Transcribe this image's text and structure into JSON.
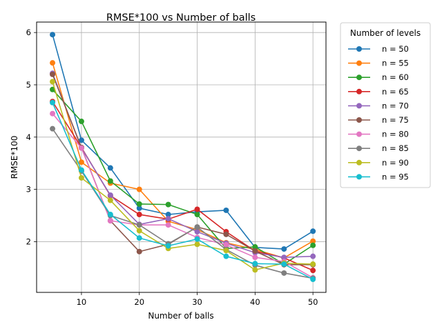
{
  "chart_data": {
    "type": "line",
    "title": "RMSE*100 vs Number of balls",
    "xlabel": "Number of balls",
    "ylabel": "RMSE*100",
    "x": [
      5,
      10,
      15,
      20,
      25,
      30,
      35,
      40,
      45,
      50
    ],
    "xlim": [
      2.25,
      52.25
    ],
    "ylim": [
      1.03,
      6.2
    ],
    "xticks": [
      10,
      20,
      30,
      40,
      50
    ],
    "yticks": [
      2,
      3,
      4,
      5,
      6
    ],
    "grid": true,
    "legend": {
      "title": "Number of levels",
      "placement": "outside-right"
    },
    "series": [
      {
        "name": "n = 50",
        "color": "#1f77b4",
        "values": [
          5.96,
          3.94,
          3.41,
          2.64,
          2.52,
          2.57,
          2.6,
          1.89,
          1.86,
          2.2
        ]
      },
      {
        "name": "n = 55",
        "color": "#ff7f0e",
        "values": [
          5.42,
          3.52,
          3.12,
          3.0,
          2.39,
          2.23,
          1.98,
          1.85,
          1.69,
          2.01
        ]
      },
      {
        "name": "n = 60",
        "color": "#2ca02c",
        "values": [
          4.91,
          4.3,
          3.16,
          2.72,
          2.71,
          2.52,
          1.87,
          1.9,
          1.57,
          1.93
        ]
      },
      {
        "name": "n = 65",
        "color": "#d62728",
        "values": [
          4.68,
          3.8,
          2.88,
          2.52,
          2.43,
          2.62,
          2.19,
          1.82,
          1.69,
          1.45
        ]
      },
      {
        "name": "n = 70",
        "color": "#9467bd",
        "values": [
          5.22,
          3.79,
          2.89,
          2.33,
          2.44,
          2.19,
          1.97,
          1.79,
          1.7,
          1.72
        ]
      },
      {
        "name": "n = 75",
        "color": "#8c564b",
        "values": [
          5.2,
          3.8,
          2.4,
          1.81,
          1.95,
          2.28,
          2.14,
          1.82,
          1.56,
          1.56
        ]
      },
      {
        "name": "n = 80",
        "color": "#e377c2",
        "values": [
          4.45,
          3.79,
          2.4,
          2.32,
          2.32,
          2.08,
          1.94,
          1.7,
          1.62,
          1.31
        ]
      },
      {
        "name": "n = 85",
        "color": "#7f7f7f",
        "values": [
          4.16,
          3.35,
          2.5,
          2.32,
          1.96,
          2.28,
          1.85,
          1.55,
          1.4,
          1.3
        ]
      },
      {
        "name": "n = 90",
        "color": "#bcbd22",
        "values": [
          5.06,
          3.22,
          2.79,
          2.21,
          1.87,
          1.95,
          1.83,
          1.46,
          1.59,
          1.57
        ]
      },
      {
        "name": "n = 95",
        "color": "#17becf",
        "values": [
          4.66,
          3.37,
          2.52,
          2.07,
          1.92,
          2.05,
          1.72,
          1.58,
          1.57,
          1.28
        ]
      }
    ]
  }
}
